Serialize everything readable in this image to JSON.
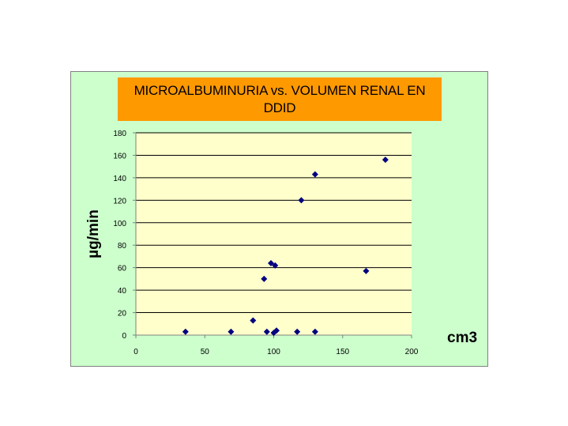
{
  "chart_data": {
    "type": "scatter",
    "title_lines": [
      "MICROALBUMINURIA vs. VOLUMEN RENAL EN",
      "DDID"
    ],
    "xlabel": "cm3",
    "ylabel": "µg/min",
    "xlim": [
      0,
      200
    ],
    "ylim": [
      0,
      180
    ],
    "x_ticks": [
      0,
      50,
      100,
      150,
      200
    ],
    "y_ticks": [
      0,
      20,
      40,
      60,
      80,
      100,
      120,
      140,
      160,
      180
    ],
    "grid": "horizontal",
    "plot_background": "#ffffcc",
    "frame_background": "#ccffcc",
    "title_background": "#ff9900",
    "marker_color": "#000080",
    "marker": "diamond",
    "points": [
      {
        "x": 36,
        "y": 3
      },
      {
        "x": 69,
        "y": 3
      },
      {
        "x": 85,
        "y": 13
      },
      {
        "x": 93,
        "y": 50
      },
      {
        "x": 95,
        "y": 3
      },
      {
        "x": 98,
        "y": 64
      },
      {
        "x": 100,
        "y": 2
      },
      {
        "x": 101,
        "y": 62
      },
      {
        "x": 102,
        "y": 4
      },
      {
        "x": 117,
        "y": 3
      },
      {
        "x": 120,
        "y": 120
      },
      {
        "x": 130,
        "y": 143
      },
      {
        "x": 130,
        "y": 3
      },
      {
        "x": 167,
        "y": 57
      },
      {
        "x": 181,
        "y": 156
      }
    ]
  }
}
